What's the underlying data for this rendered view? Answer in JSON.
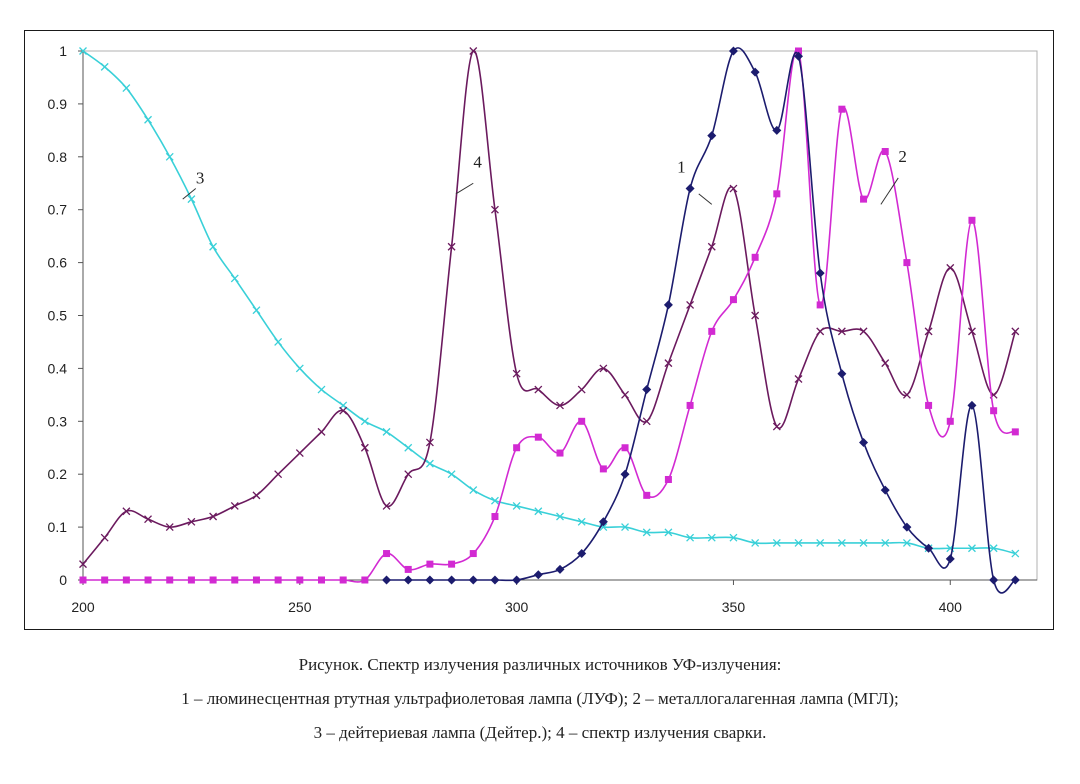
{
  "caption": {
    "line1": "Рисунок. Спектр излучения различных источников УФ-излучения:",
    "line2": "1 – люминесцентная ртутная ультрафиолетовая лампа (ЛУФ); 2 – металлогалагенная лампа (МГЛ);",
    "line3": "3 – дейтериевая лампа (Дейтер.); 4 – спектр излучения сварки."
  },
  "chart_data": {
    "type": "line",
    "xlim": [
      200,
      420
    ],
    "ylim": [
      0,
      1
    ],
    "xticks": [
      200,
      250,
      300,
      350,
      400
    ],
    "yticks": [
      0,
      0.1,
      0.2,
      0.3,
      0.4,
      0.5,
      0.6,
      0.7,
      0.8,
      0.9,
      1
    ],
    "grid": false,
    "legend": "none",
    "series": [
      {
        "name": "1",
        "color": "#1c1c6e",
        "marker": "diamond",
        "label_at": [
          338,
          0.77
        ],
        "x": [
          270,
          275,
          280,
          285,
          290,
          295,
          300,
          305,
          310,
          315,
          320,
          325,
          330,
          335,
          340,
          345,
          350,
          355,
          360,
          365,
          370,
          375,
          380,
          385,
          390,
          395,
          400,
          405,
          410,
          415
        ],
        "y": [
          0,
          0,
          0,
          0,
          0,
          0,
          0,
          0.01,
          0.02,
          0.05,
          0.11,
          0.2,
          0.36,
          0.52,
          0.74,
          0.84,
          1.0,
          0.96,
          0.85,
          0.99,
          0.58,
          0.39,
          0.26,
          0.17,
          0.1,
          0.06,
          0.04,
          0.33,
          0.0,
          0.0
        ]
      },
      {
        "name": "2",
        "color": "#d22ad2",
        "marker": "square",
        "label_at": [
          389,
          0.79
        ],
        "x": [
          200,
          205,
          210,
          215,
          220,
          225,
          230,
          235,
          240,
          245,
          250,
          255,
          260,
          265,
          270,
          275,
          280,
          285,
          290,
          295,
          300,
          305,
          310,
          315,
          320,
          325,
          330,
          335,
          340,
          345,
          350,
          355,
          360,
          365,
          370,
          375,
          380,
          385,
          390,
          395,
          400,
          405,
          410,
          415
        ],
        "y": [
          0,
          0,
          0,
          0,
          0,
          0,
          0,
          0,
          0,
          0,
          0,
          0,
          0,
          0,
          0.05,
          0.02,
          0.03,
          0.03,
          0.05,
          0.12,
          0.25,
          0.27,
          0.24,
          0.3,
          0.21,
          0.25,
          0.16,
          0.19,
          0.33,
          0.47,
          0.53,
          0.61,
          0.73,
          1.0,
          0.52,
          0.89,
          0.72,
          0.81,
          0.6,
          0.33,
          0.3,
          0.68,
          0.32,
          0.28
        ]
      },
      {
        "name": "3",
        "color": "#39d0d8",
        "marker": "x",
        "label_at": [
          227,
          0.75
        ],
        "x": [
          200,
          205,
          210,
          215,
          220,
          225,
          230,
          235,
          240,
          245,
          250,
          255,
          260,
          265,
          270,
          275,
          280,
          285,
          290,
          295,
          300,
          305,
          310,
          315,
          320,
          325,
          330,
          335,
          340,
          345,
          350,
          355,
          360,
          365,
          370,
          375,
          380,
          385,
          390,
          395,
          400,
          405,
          410,
          415
        ],
        "y": [
          1.0,
          0.97,
          0.93,
          0.87,
          0.8,
          0.72,
          0.63,
          0.57,
          0.51,
          0.45,
          0.4,
          0.36,
          0.33,
          0.3,
          0.28,
          0.25,
          0.22,
          0.2,
          0.17,
          0.15,
          0.14,
          0.13,
          0.12,
          0.11,
          0.1,
          0.1,
          0.09,
          0.09,
          0.08,
          0.08,
          0.08,
          0.07,
          0.07,
          0.07,
          0.07,
          0.07,
          0.07,
          0.07,
          0.07,
          0.06,
          0.06,
          0.06,
          0.06,
          0.05
        ]
      },
      {
        "name": "4",
        "color": "#6b1a5e",
        "marker": "x",
        "label_at": [
          291,
          0.78
        ],
        "x": [
          200,
          205,
          210,
          215,
          220,
          225,
          230,
          235,
          240,
          245,
          250,
          255,
          260,
          265,
          270,
          275,
          280,
          285,
          290,
          295,
          300,
          305,
          310,
          315,
          320,
          325,
          330,
          335,
          340,
          345,
          350,
          355,
          360,
          365,
          370,
          375,
          380,
          385,
          390,
          395,
          400,
          405,
          410,
          415
        ],
        "y": [
          0.03,
          0.08,
          0.13,
          0.115,
          0.1,
          0.11,
          0.12,
          0.14,
          0.16,
          0.2,
          0.24,
          0.28,
          0.32,
          0.25,
          0.14,
          0.2,
          0.26,
          0.63,
          1.0,
          0.7,
          0.39,
          0.36,
          0.33,
          0.36,
          0.4,
          0.35,
          0.3,
          0.41,
          0.52,
          0.63,
          0.74,
          0.5,
          0.29,
          0.38,
          0.47,
          0.47,
          0.47,
          0.41,
          0.35,
          0.47,
          0.59,
          0.47,
          0.35,
          0.47
        ]
      }
    ]
  }
}
